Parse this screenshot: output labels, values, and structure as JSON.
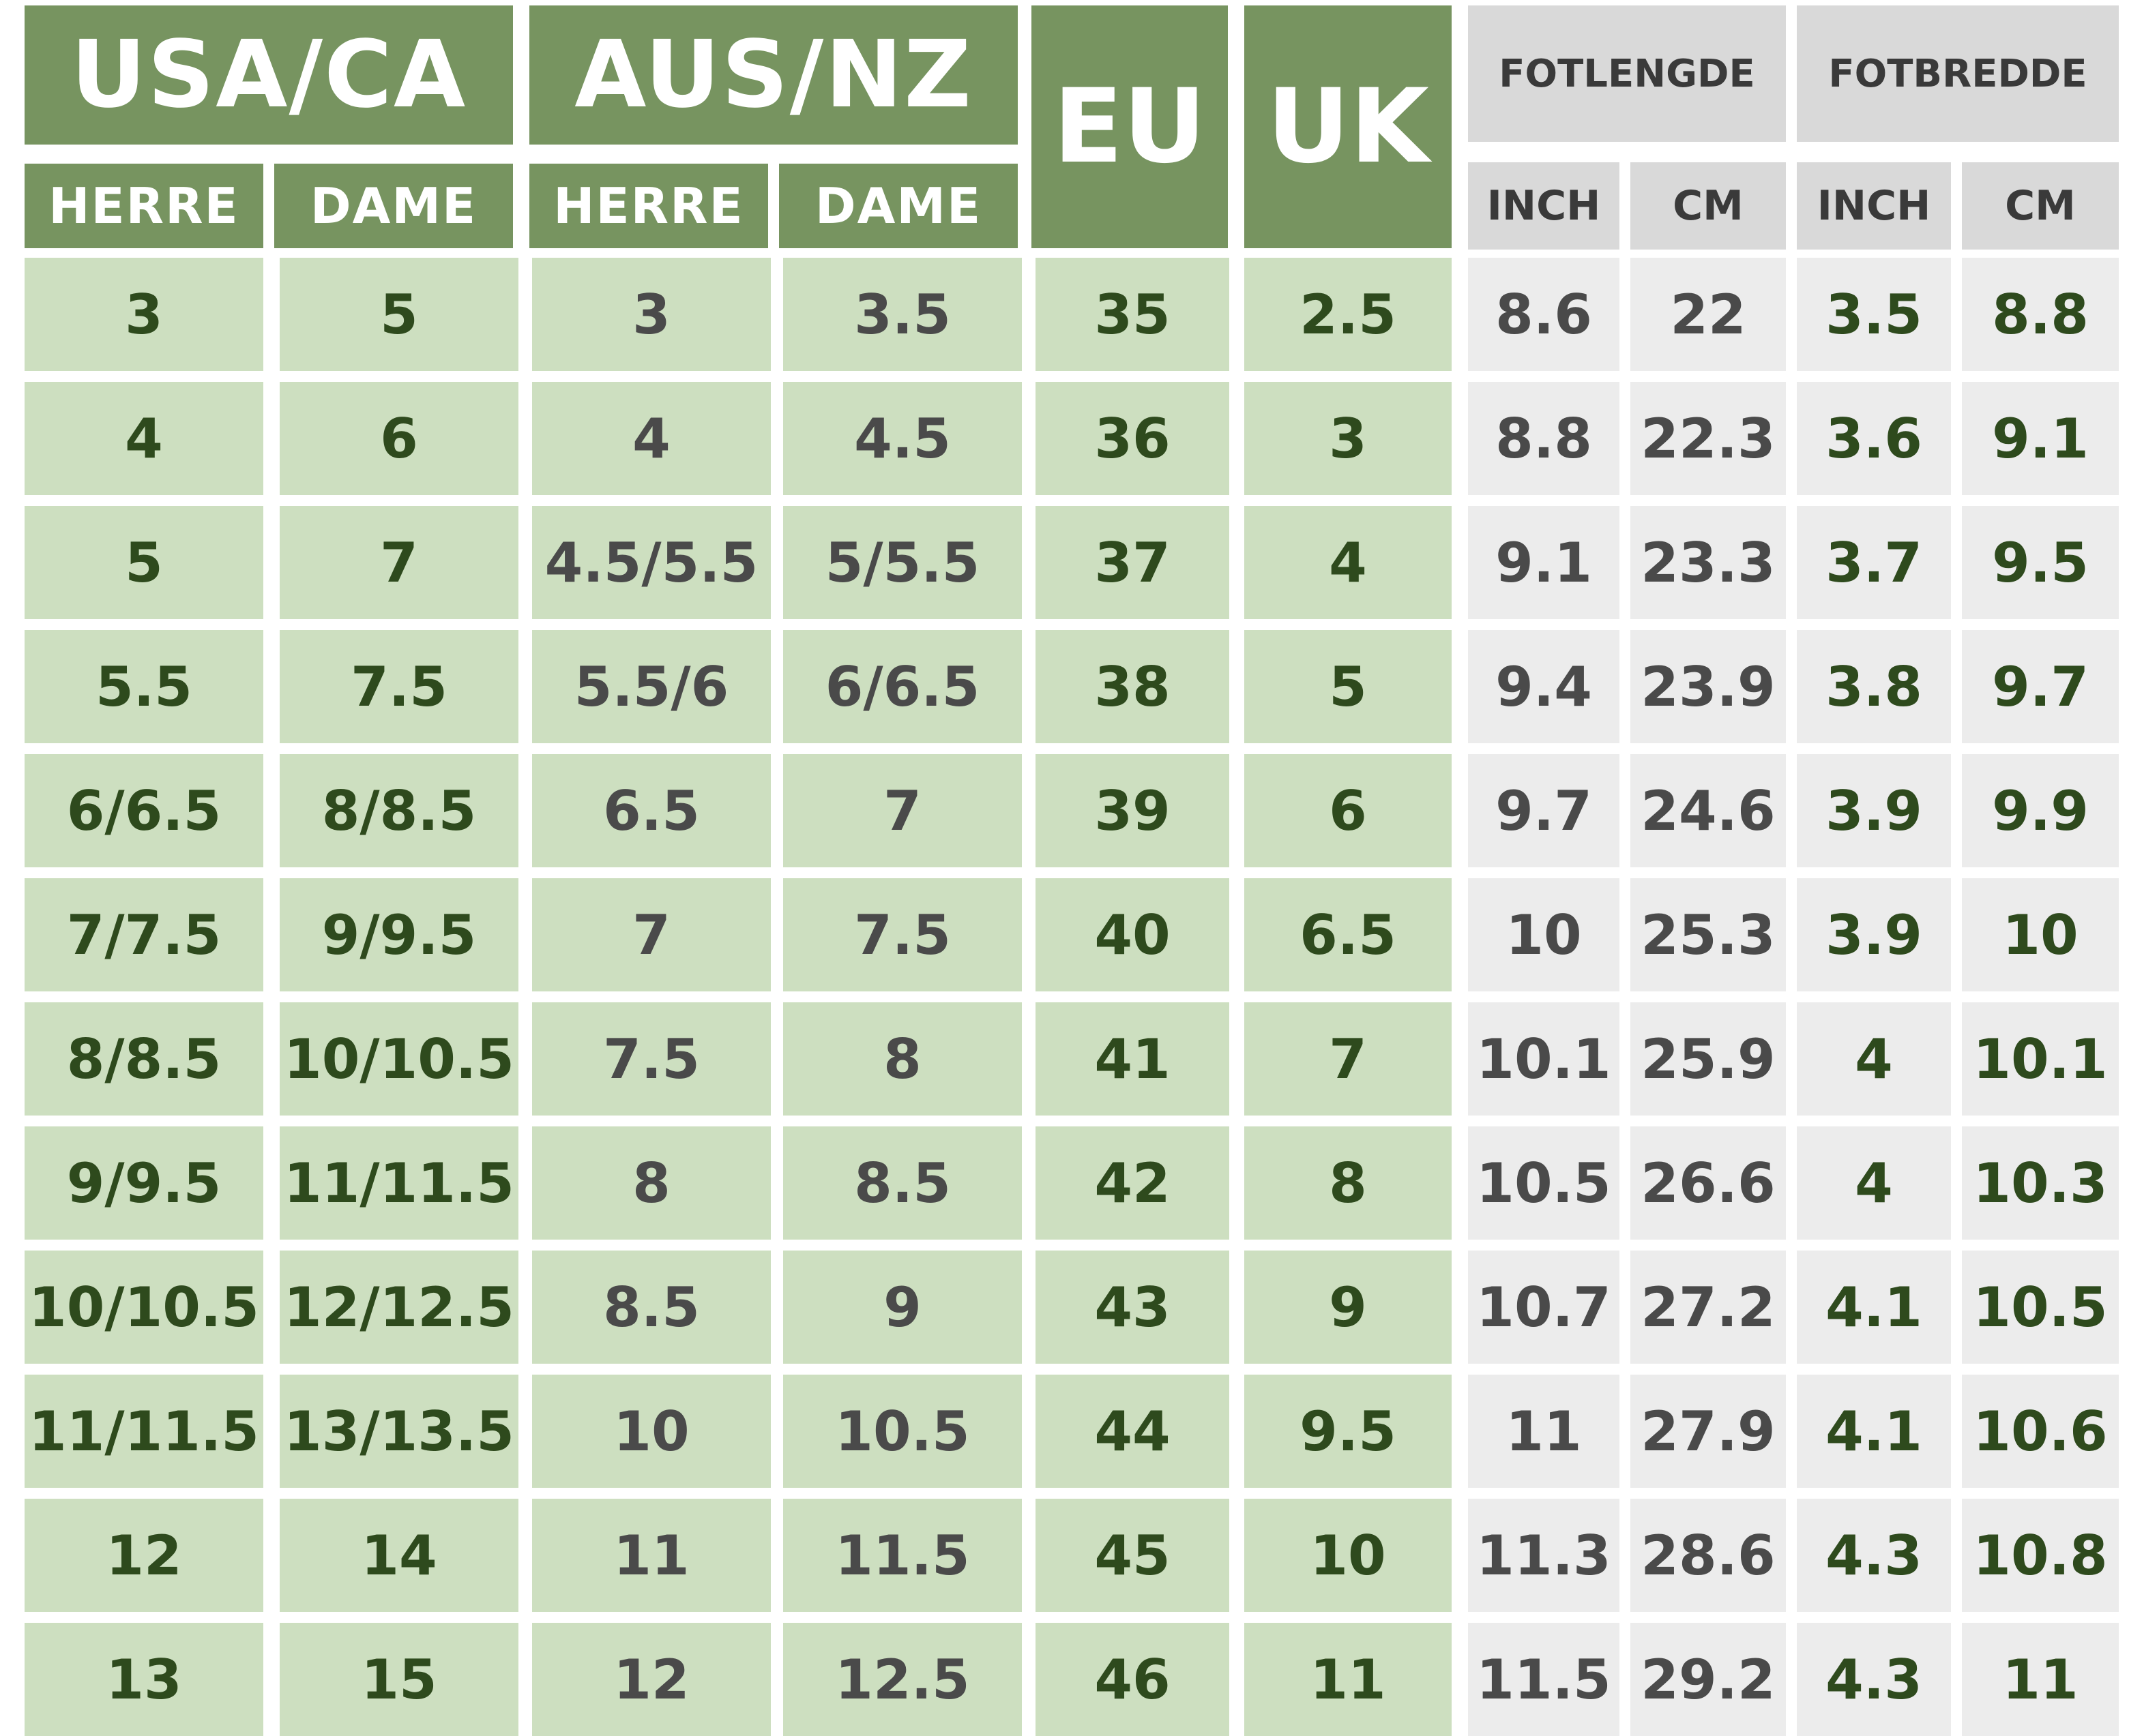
{
  "headers": {
    "usa_ca": "USA/CA",
    "aus_nz": "AUS/NZ",
    "eu": "EU",
    "uk": "UK",
    "fotlengde": "FOTLENGDE",
    "fotbredde": "FOTBREDDE",
    "herre": "HERRE",
    "dame": "DAME",
    "inch": "INCH",
    "cm": "CM"
  },
  "rows": [
    [
      "3",
      "5",
      "3",
      "3.5",
      "35",
      "2.5",
      "8.6",
      "22",
      "3.5",
      "8.8"
    ],
    [
      "4",
      "6",
      "4",
      "4.5",
      "36",
      "3",
      "8.8",
      "22.3",
      "3.6",
      "9.1"
    ],
    [
      "5",
      "7",
      "4.5/5.5",
      "5/5.5",
      "37",
      "4",
      "9.1",
      "23.3",
      "3.7",
      "9.5"
    ],
    [
      "5.5",
      "7.5",
      "5.5/6",
      "6/6.5",
      "38",
      "5",
      "9.4",
      "23.9",
      "3.8",
      "9.7"
    ],
    [
      "6/6.5",
      "8/8.5",
      "6.5",
      "7",
      "39",
      "6",
      "9.7",
      "24.6",
      "3.9",
      "9.9"
    ],
    [
      "7/7.5",
      "9/9.5",
      "7",
      "7.5",
      "40",
      "6.5",
      "10",
      "25.3",
      "3.9",
      "10"
    ],
    [
      "8/8.5",
      "10/10.5",
      "7.5",
      "8",
      "41",
      "7",
      "10.1",
      "25.9",
      "4",
      "10.1"
    ],
    [
      "9/9.5",
      "11/11.5",
      "8",
      "8.5",
      "42",
      "8",
      "10.5",
      "26.6",
      "4",
      "10.3"
    ],
    [
      "10/10.5",
      "12/12.5",
      "8.5",
      "9",
      "43",
      "9",
      "10.7",
      "27.2",
      "4.1",
      "10.5"
    ],
    [
      "11/11.5",
      "13/13.5",
      "10",
      "10.5",
      "44",
      "9.5",
      "11",
      "27.9",
      "4.1",
      "10.6"
    ],
    [
      "12",
      "14",
      "11",
      "11.5",
      "45",
      "10",
      "11.3",
      "28.6",
      "4.3",
      "10.8"
    ],
    [
      "13",
      "15",
      "12",
      "12.5",
      "46",
      "11",
      "11.5",
      "29.2",
      "4.3",
      "11"
    ]
  ]
}
